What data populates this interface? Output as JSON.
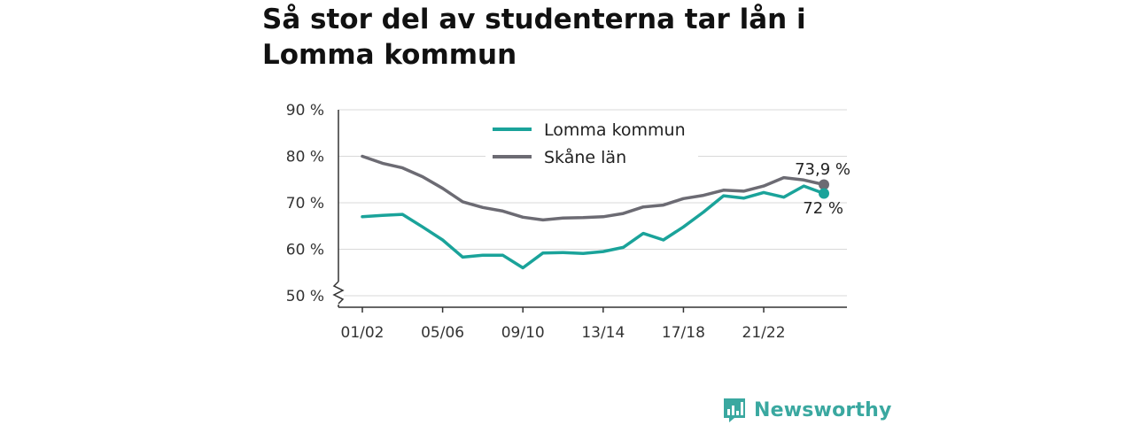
{
  "title": "Så stor del av studenterna tar lån i Lomma kommun",
  "brand": {
    "name": "Newsworthy",
    "icon": "bar-chart-icon",
    "color": "#3aa8a0"
  },
  "chart_data": {
    "type": "line",
    "title": "Så stor del av studenterna tar lån i Lomma kommun",
    "xlabel": "",
    "ylabel": "",
    "categories": [
      "01/02",
      "02/03",
      "03/04",
      "04/05",
      "05/06",
      "06/07",
      "07/08",
      "08/09",
      "09/10",
      "10/11",
      "11/12",
      "12/13",
      "13/14",
      "14/15",
      "15/16",
      "16/17",
      "17/18",
      "18/19",
      "19/20",
      "20/21",
      "21/22",
      "22/23",
      "23/24",
      "24/25"
    ],
    "x_tick_labels": [
      "01/02",
      "05/06",
      "09/10",
      "13/14",
      "17/18",
      "21/22"
    ],
    "y_ticks": [
      50,
      60,
      70,
      80,
      90
    ],
    "y_tick_suffix": " %",
    "ylim": [
      48,
      90
    ],
    "y_axis_break": true,
    "grid": true,
    "legend_position": "top-center",
    "series": [
      {
        "name": "Lomma kommun",
        "color": "#1aa39a",
        "values": [
          67.0,
          67.3,
          67.5,
          64.8,
          62.0,
          58.3,
          58.7,
          58.7,
          56.0,
          59.2,
          59.3,
          59.1,
          59.5,
          60.4,
          63.4,
          62.0,
          64.8,
          68.0,
          71.5,
          71.0,
          72.2,
          71.2,
          73.6,
          72.0
        ],
        "end_label": "72 %"
      },
      {
        "name": "Skåne län",
        "color": "#6c6b73",
        "values": [
          80.0,
          78.5,
          77.5,
          75.6,
          73.1,
          70.2,
          69.0,
          68.2,
          66.9,
          66.3,
          66.7,
          66.8,
          67.0,
          67.7,
          69.1,
          69.5,
          70.9,
          71.6,
          72.7,
          72.5,
          73.6,
          75.4,
          74.9,
          73.9
        ],
        "end_label": "73,9 %"
      }
    ]
  }
}
